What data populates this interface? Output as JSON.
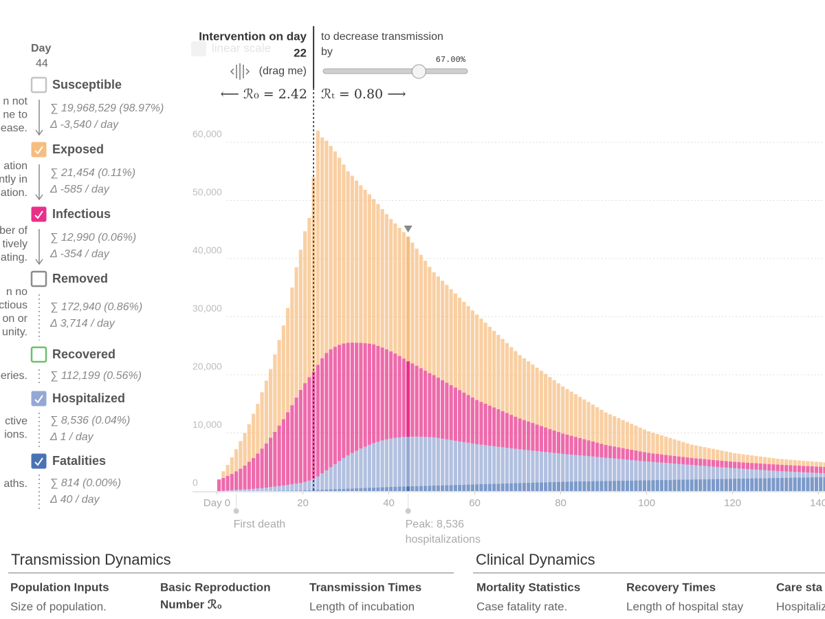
{
  "sidebar": {
    "day_label": "Day",
    "day": 44,
    "compartments": [
      {
        "name": "Susceptible",
        "color": "#c4c4c4",
        "checked": false,
        "stats": [
          "∑ 19,968,529 (98.97%)",
          "Δ -3,540 / day"
        ],
        "note": [
          "n not",
          "ne to",
          "ease."
        ]
      },
      {
        "checked": true,
        "stats": [
          "∑ 21,454 (0.11%)",
          "Δ -585 / day"
        ],
        "note": [
          "ation",
          "ntly in",
          "ation."
        ]
      },
      {
        "checked": true,
        "stats": [
          "∑ 12,990 (0.06%)",
          "Δ -354 / day"
        ],
        "note": [
          "ber of",
          "tively",
          "ating."
        ]
      },
      {
        "name": "Removed",
        "color": "#8a8a8a",
        "checked": false,
        "stats": [
          "∑ 172,940 (0.86%)",
          "Δ 3,714 / day"
        ],
        "note": [
          "n no",
          "ectious",
          "on or",
          "unity."
        ]
      },
      {
        "name": "Recovered",
        "color": "#6cbf6a",
        "checked": false,
        "stats": [
          "∑ 112,199 (0.56%)"
        ],
        "note": [
          "eries."
        ]
      },
      {
        "checked": true,
        "stats": [
          "∑ 8,536 (0.04%)",
          "Δ 1 / day"
        ],
        "note": [
          "ctive",
          "ions."
        ]
      },
      {
        "checked": true,
        "stats": [
          "∑ 814 (0.00%)",
          "Δ 40 / day"
        ],
        "note": [
          "aths."
        ]
      }
    ]
  },
  "controls": {
    "scale_toggle": "linear scale",
    "intervention_label": "Intervention on day",
    "intervention_day": 22,
    "drag_hint": "(drag me)",
    "r0": "⟵ ℛ₀ = 2.42",
    "rt": "ℛₜ = 0.80 ⟶",
    "decrease_label": [
      "to decrease transmission",
      "by"
    ],
    "decrease": {
      "value": 67,
      "label": "67.00%"
    }
  },
  "chart_data": {
    "type": "bar",
    "stacked": true,
    "grid": true,
    "x": [
      0,
      1,
      2,
      3,
      4,
      5,
      6,
      7,
      8,
      9,
      10,
      11,
      12,
      13,
      14,
      15,
      16,
      17,
      18,
      19,
      20,
      21,
      22,
      23,
      24,
      25,
      26,
      27,
      28,
      29,
      30,
      31,
      32,
      33,
      34,
      35,
      36,
      37,
      38,
      39,
      40,
      41,
      42,
      43,
      44,
      45,
      46,
      47,
      48,
      49,
      50,
      51,
      52,
      53,
      54,
      55,
      56,
      57,
      58,
      59,
      60,
      61,
      62,
      63,
      64,
      65,
      66,
      67,
      68,
      69,
      70,
      71,
      72,
      73,
      74,
      75,
      76,
      77,
      78,
      79,
      80,
      81,
      82,
      83,
      84,
      85,
      86,
      87,
      88,
      89,
      90,
      91,
      92,
      93,
      94,
      95,
      96,
      97,
      98,
      99,
      100,
      101,
      102,
      103,
      104,
      105,
      106,
      107,
      108,
      109,
      110,
      111,
      112,
      113,
      114,
      115,
      116,
      117,
      118,
      119,
      120,
      121,
      122,
      123,
      124,
      125,
      126,
      127,
      128,
      129,
      130,
      131,
      132,
      133,
      134,
      135,
      136,
      137,
      138,
      139,
      140,
      141
    ],
    "xlim": [
      -6,
      141.5
    ],
    "xticks": [
      {
        "value": 0,
        "label": "Day 0"
      },
      20,
      40,
      60,
      80,
      100,
      120,
      140
    ],
    "ylim": [
      0,
      70000
    ],
    "yticks": [
      0,
      {
        "value": 10000,
        "label": "10,000"
      },
      {
        "value": 20000,
        "label": "20,000"
      },
      {
        "value": 30000,
        "label": "30,000"
      },
      {
        "value": 40000,
        "label": "40,000"
      },
      {
        "value": 50000,
        "label": "50,000"
      },
      {
        "value": 60000,
        "label": "60,000"
      }
    ],
    "series": [
      {
        "name": "Fatalities",
        "color": "#4a73b4",
        "values": [
          0,
          0,
          0,
          0,
          0,
          0,
          0,
          0,
          0,
          0,
          10,
          20,
          30,
          40,
          50,
          60,
          70,
          80,
          90,
          100,
          120,
          150,
          180,
          210,
          240,
          270,
          300,
          330,
          360,
          390,
          420,
          450,
          480,
          510,
          540,
          570,
          600,
          630,
          660,
          690,
          715,
          740,
          765,
          790,
          814,
          836,
          858,
          880,
          902,
          924,
          946,
          968,
          990,
          1012,
          1034,
          1056,
          1078,
          1100,
          1122,
          1144,
          1166,
          1188,
          1210,
          1232,
          1254,
          1276,
          1298,
          1320,
          1342,
          1364,
          1386,
          1408,
          1430,
          1452,
          1474,
          1496,
          1518,
          1540,
          1562,
          1584,
          1606,
          1619,
          1632,
          1645,
          1658,
          1671,
          1684,
          1697,
          1710,
          1723,
          1736,
          1749,
          1762,
          1775,
          1788,
          1801,
          1814,
          1827,
          1840,
          1853,
          1866,
          1879,
          1892,
          1905,
          1918,
          1931,
          1944,
          1957,
          1970,
          1983,
          1996,
          2009,
          2022,
          2035,
          2048,
          2061,
          2074,
          2087,
          2100,
          2113,
          2126,
          2139,
          2152,
          2165,
          2178,
          2191,
          2204,
          2217,
          2230,
          2243,
          2256,
          2269,
          2282,
          2295,
          2308,
          2321,
          2334,
          2347,
          2360,
          2373,
          2386,
          2399
        ]
      },
      {
        "name": "Hospitalized",
        "color": "#94a8d4",
        "values": [
          0,
          50,
          100,
          150,
          200,
          250,
          300,
          350,
          400,
          450,
          500,
          580,
          660,
          740,
          820,
          900,
          1000,
          1100,
          1200,
          1300,
          1450,
          1650,
          1900,
          2300,
          2800,
          3300,
          3800,
          4300,
          4800,
          5300,
          5700,
          6100,
          6450,
          6800,
          7100,
          7400,
          7650,
          7850,
          8050,
          8200,
          8330,
          8420,
          8480,
          8520,
          8536,
          8530,
          8510,
          8470,
          8420,
          8360,
          8300,
          8160,
          8020,
          7880,
          7740,
          7600,
          7460,
          7320,
          7180,
          7040,
          6900,
          6790,
          6680,
          6570,
          6460,
          6350,
          6240,
          6130,
          6020,
          5910,
          5800,
          5700,
          5600,
          5500,
          5400,
          5300,
          5200,
          5100,
          5000,
          4900,
          4800,
          4720,
          4640,
          4560,
          4480,
          4400,
          4320,
          4240,
          4160,
          4080,
          4000,
          3920,
          3840,
          3760,
          3680,
          3600,
          3520,
          3440,
          3360,
          3280,
          3200,
          3130,
          3060,
          2990,
          2920,
          2850,
          2780,
          2710,
          2640,
          2570,
          2500,
          2430,
          2360,
          2290,
          2220,
          2150,
          2080,
          2010,
          1940,
          1870,
          1800,
          1740,
          1680,
          1620,
          1560,
          1500,
          1440,
          1380,
          1320,
          1260,
          1200,
          1150,
          1100,
          1050,
          1000,
          950,
          900,
          850,
          800,
          750,
          700,
          650
        ]
      },
      {
        "name": "Infectious",
        "color": "#e8308a",
        "values": [
          2000,
          2200,
          2500,
          2800,
          3200,
          3600,
          4100,
          4700,
          5300,
          6000,
          6800,
          7600,
          8500,
          9400,
          10400,
          11400,
          12500,
          13600,
          14800,
          16000,
          17000,
          17800,
          18500,
          19200,
          19800,
          20200,
          20300,
          20200,
          20000,
          19700,
          19400,
          19000,
          18600,
          18200,
          17800,
          17400,
          17000,
          16500,
          16000,
          15500,
          15000,
          14500,
          14000,
          13500,
          12990,
          12600,
          12200,
          11800,
          11400,
          11000,
          10700,
          10390,
          10080,
          9770,
          9460,
          9150,
          8840,
          8530,
          8220,
          7910,
          7600,
          7370,
          7140,
          6910,
          6680,
          6450,
          6220,
          5990,
          5760,
          5530,
          5300,
          5120,
          4940,
          4760,
          4580,
          4400,
          4220,
          4040,
          3860,
          3680,
          3500,
          3370,
          3240,
          3110,
          2980,
          2850,
          2720,
          2590,
          2460,
          2330,
          2200,
          2130,
          2060,
          1990,
          1920,
          1850,
          1780,
          1710,
          1640,
          1570,
          1500,
          1470,
          1440,
          1410,
          1380,
          1350,
          1320,
          1290,
          1260,
          1230,
          1200,
          1190,
          1180,
          1170,
          1160,
          1150,
          1140,
          1130,
          1120,
          1110,
          1100,
          1100,
          1100,
          1100,
          1100,
          1100,
          1100,
          1100,
          1100,
          1100,
          1100,
          1100,
          1100,
          1100,
          1100,
          1100,
          1100,
          1100,
          1100,
          1100,
          1100,
          1100
        ]
      },
      {
        "name": "Exposed",
        "color": "#f6bd7e",
        "values": [
          0,
          1150,
          1900,
          2850,
          3800,
          4750,
          5600,
          6450,
          7600,
          8550,
          9690,
          10800,
          11800,
          13330,
          14740,
          16140,
          17940,
          20230,
          22420,
          24110,
          26130,
          27400,
          33420,
          40290,
          38000,
          36500,
          35000,
          33600,
          32200,
          30800,
          29500,
          28700,
          27900,
          27100,
          26400,
          25700,
          25000,
          24400,
          23800,
          23250,
          22750,
          22400,
          22050,
          21750,
          21454,
          20800,
          20150,
          19500,
          18900,
          18300,
          17700,
          17400,
          17100,
          16800,
          16500,
          16200,
          15900,
          15600,
          15300,
          15000,
          14700,
          14320,
          13940,
          13560,
          13180,
          12800,
          12420,
          12040,
          11660,
          11280,
          10900,
          10620,
          10340,
          10060,
          9780,
          9500,
          9220,
          8940,
          8660,
          8380,
          8100,
          7850,
          7600,
          7350,
          7100,
          6850,
          6600,
          6350,
          6100,
          5850,
          5600,
          5410,
          5220,
          5030,
          4840,
          4650,
          4460,
          4270,
          4080,
          3890,
          3700,
          3560,
          3420,
          3280,
          3140,
          3000,
          2860,
          2720,
          2580,
          2440,
          2300,
          2220,
          2140,
          2060,
          1980,
          1900,
          1820,
          1740,
          1660,
          1580,
          1500,
          1450,
          1400,
          1350,
          1300,
          1250,
          1200,
          1150,
          1100,
          1050,
          1000,
          980,
          960,
          940,
          920,
          900,
          880,
          860,
          840,
          820,
          800,
          780
        ]
      }
    ],
    "annotations": [
      {
        "x": 4,
        "lines": [
          "First death"
        ]
      },
      {
        "x": 44,
        "lines": [
          "Peak: 8,536",
          "hospitalizations"
        ]
      }
    ]
  },
  "footer": {
    "sections": [
      {
        "title": "Transmission Dynamics",
        "columns": [
          {
            "head": [
              "Population Inputs"
            ],
            "text": "Size of population."
          },
          {
            "head": [
              "Basic Reproduction",
              "Number ℛ₀"
            ]
          },
          {
            "head": [
              "Transmission Times"
            ],
            "text": "Length of incubation"
          }
        ]
      },
      {
        "title": "Clinical Dynamics",
        "columns": [
          {
            "head": [
              "Mortality Statistics"
            ],
            "text": "Case fatality rate."
          },
          {
            "head": [
              "Recovery Times"
            ],
            "text": "Length of hospital stay"
          },
          {
            "head": [
              "Care sta"
            ],
            "text": "Hospitaliz"
          }
        ]
      }
    ]
  }
}
